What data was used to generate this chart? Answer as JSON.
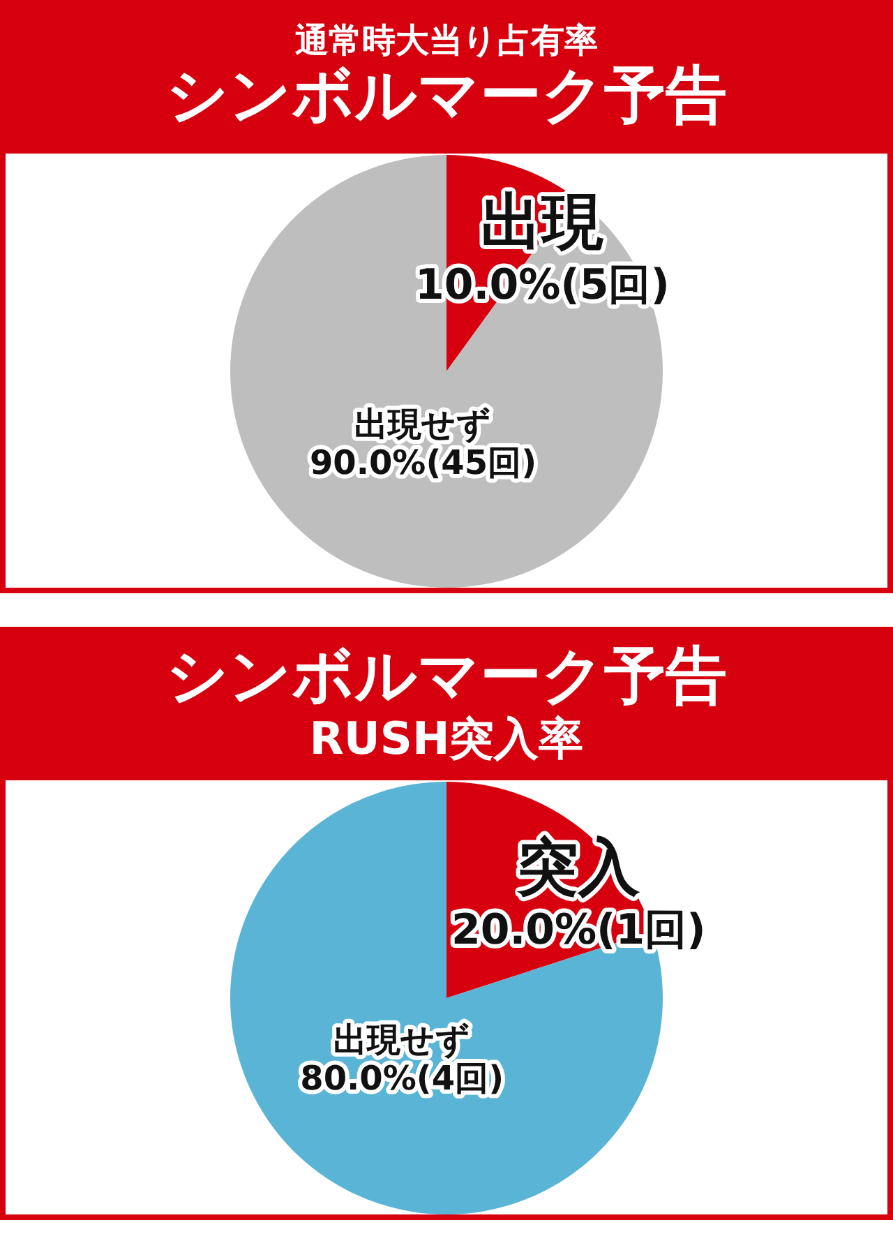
{
  "chart_data": [
    {
      "type": "pie",
      "title": "通常時大当り占有率",
      "subtitle": "シンボルマーク予告",
      "categories": [
        "出現",
        "出現せず"
      ],
      "values": [
        10,
        90
      ],
      "colors": [
        "#d7000f",
        "#bebebe"
      ],
      "value_labels": [
        "10.0%(5回)",
        "90.0%(45回)"
      ],
      "legend": false
    },
    {
      "type": "pie",
      "title": "シンボルマーク予告",
      "subtitle": "RUSH突入率",
      "categories": [
        "突入",
        "出現せず"
      ],
      "values": [
        20,
        80
      ],
      "colors": [
        "#d7000f",
        "#5ab4d6"
      ],
      "value_labels": [
        "20.0%(1回)",
        "80.0%(4回)"
      ],
      "legend": false
    }
  ]
}
